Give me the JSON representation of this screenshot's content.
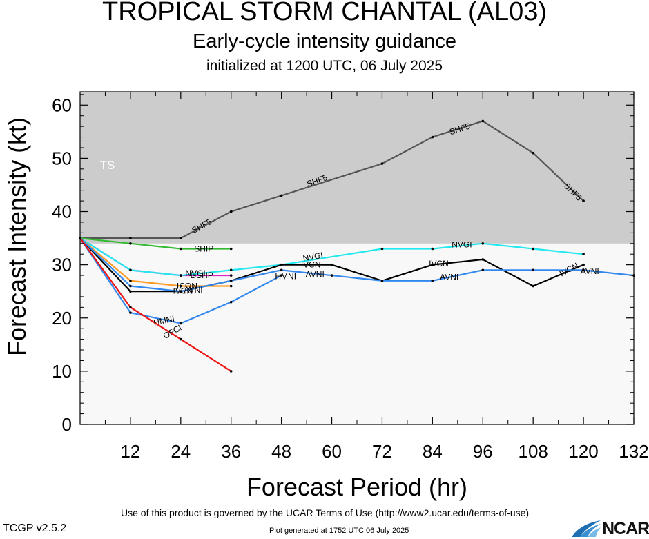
{
  "title": "TROPICAL STORM CHANTAL (AL03)",
  "subtitle": "Early-cycle intensity guidance",
  "initialized": "initialized at 1200 UTC, 06 July 2025",
  "footer": {
    "terms": "Use of this product is governed by the UCAR Terms of Use (http://www2.ucar.edu/terms-of-use)",
    "generated": "Plot generated at 1752 UTC   06 July 2025",
    "version": "TCGP v2.5.2",
    "logo": "NCAR"
  },
  "colors": {
    "ts_band": "#cccccc",
    "plot_bg": "#f8f8f8"
  },
  "chart_data": {
    "type": "line",
    "xlabel": "Forecast Period (hr)",
    "ylabel": "Forecast Intensity (kt)",
    "xlim": [
      0,
      132
    ],
    "ylim": [
      0,
      62.5
    ],
    "x_ticks": [
      12,
      24,
      36,
      48,
      60,
      72,
      84,
      96,
      108,
      120,
      132
    ],
    "y_ticks": [
      0,
      10,
      20,
      30,
      40,
      50,
      60
    ],
    "bands": [
      {
        "label": "TS",
        "from": 34,
        "to": 62.5,
        "color": "#cccccc"
      }
    ],
    "series": [
      {
        "name": "SHF5",
        "color": "#555555",
        "x": [
          0,
          12,
          24,
          36,
          48,
          72,
          84,
          96,
          108,
          120
        ],
        "y": [
          35,
          35,
          35,
          40,
          43,
          49,
          54,
          57,
          51,
          42
        ]
      },
      {
        "name": "SHIP",
        "color": "#33bb33",
        "x": [
          0,
          12,
          24,
          36
        ],
        "y": [
          35,
          34,
          33,
          33
        ]
      },
      {
        "name": "DSHP",
        "color": "#dd22cc",
        "x": [
          0,
          12,
          24,
          36
        ],
        "y": [
          35,
          29,
          28,
          28
        ]
      },
      {
        "name": "NVGI",
        "color": "#22e8f0",
        "x": [
          0,
          12,
          24,
          36,
          48,
          72,
          84,
          96,
          108,
          120
        ],
        "y": [
          35,
          29,
          28,
          29,
          30,
          33,
          33,
          34,
          33,
          32
        ]
      },
      {
        "name": "ICON",
        "color": "#ff9a22",
        "x": [
          0,
          12,
          24,
          36
        ],
        "y": [
          35,
          27,
          26,
          26
        ]
      },
      {
        "name": "IVCN",
        "color": "#000000",
        "x": [
          0,
          12,
          24,
          36,
          48,
          60,
          72,
          84,
          96,
          108,
          120
        ],
        "y": [
          35,
          25,
          25,
          27,
          30,
          30,
          27,
          30,
          31,
          26,
          30
        ]
      },
      {
        "name": "AVNI",
        "color": "#3388ee",
        "x": [
          0,
          12,
          24,
          36,
          48,
          60,
          72,
          84,
          96,
          108,
          120,
          132
        ],
        "y": [
          35,
          26,
          25,
          27,
          29,
          28,
          27,
          27,
          29,
          29,
          29,
          28
        ]
      },
      {
        "name": "HMNI",
        "color": "#3388ee",
        "x": [
          0,
          12,
          24,
          36,
          48
        ],
        "y": [
          35,
          21,
          19,
          23,
          28
        ]
      },
      {
        "name": "OFCI",
        "color": "#ee1111",
        "x": [
          0,
          12,
          24,
          36
        ],
        "y": [
          35,
          22,
          16,
          10
        ]
      }
    ],
    "annotations": [
      {
        "text": "TS",
        "x": 6.5,
        "y": 48.5,
        "color": "#ffffff"
      },
      {
        "text": "SHF5",
        "x": 29,
        "y": 37.3,
        "rotate": -28
      },
      {
        "text": "SHF5",
        "x": 56.5,
        "y": 45.8,
        "rotate": -20
      },
      {
        "text": "SHF5",
        "x": 90.5,
        "y": 55.5,
        "rotate": -18
      },
      {
        "text": "SHF5",
        "x": 117.5,
        "y": 43.7,
        "rotate": 45
      },
      {
        "text": "SHIP",
        "x": 29.5,
        "y": 33
      },
      {
        "text": "NVGI",
        "x": 55.5,
        "y": 31.5,
        "rotate": -10
      },
      {
        "text": "NVGI",
        "x": 91,
        "y": 33.8
      },
      {
        "text": "NVGI",
        "x": 27.5,
        "y": 28.4
      },
      {
        "text": "DSHP",
        "x": 29,
        "y": 28
      },
      {
        "text": "ICON",
        "x": 25.5,
        "y": 26
      },
      {
        "text": "IVCN",
        "x": 24.5,
        "y": 25.1
      },
      {
        "text": "AVNI",
        "x": 27,
        "y": 25.3
      },
      {
        "text": "IVCN",
        "x": 55,
        "y": 30
      },
      {
        "text": "IVCN",
        "x": 85.5,
        "y": 30.2
      },
      {
        "text": "IVCN",
        "x": 116.5,
        "y": 29.1,
        "rotate": -28
      },
      {
        "text": "HMNI",
        "x": 49,
        "y": 27.8
      },
      {
        "text": "AVNI",
        "x": 56,
        "y": 28.2
      },
      {
        "text": "AVNI",
        "x": 88,
        "y": 27.7
      },
      {
        "text": "AVNI",
        "x": 121.5,
        "y": 28.8
      },
      {
        "text": "HMNI",
        "x": 20,
        "y": 19.5,
        "rotate": -12
      },
      {
        "text": "OFCI",
        "x": 22,
        "y": 17.4,
        "rotate": -30
      }
    ]
  }
}
